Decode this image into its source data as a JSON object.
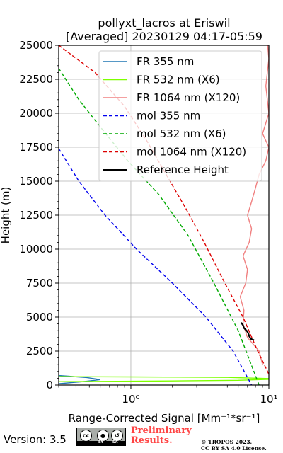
{
  "chart_data": {
    "type": "line",
    "title_line1": "pollyxt_lacros at Eriswil",
    "title_line2": "[Averaged] 20230129 04:17-05:59",
    "xlabel": "Range-Corrected Signal [Mm⁻¹*sr⁻¹]",
    "ylabel": "Height (m)",
    "xscale": "log",
    "xlim": [
      0.3,
      10
    ],
    "ylim": [
      0,
      25000
    ],
    "grid": true,
    "legend_position": "top-right",
    "yticks": [
      "0",
      "2500",
      "5000",
      "7500",
      "10000",
      "12500",
      "15000",
      "17500",
      "20000",
      "22500",
      "25000"
    ],
    "xticks": [
      "10⁰",
      "10¹"
    ],
    "series": [
      {
        "name": "FR 355 nm",
        "color": "#1f77b4",
        "style": "solid",
        "x": [
          0.3,
          0.45,
          0.6,
          0.48,
          0.35,
          0.3
        ],
        "y": [
          100,
          250,
          400,
          550,
          650,
          700
        ]
      },
      {
        "name": "FR 532 nm (X6)",
        "color": "#7fff00",
        "style": "solid",
        "x": [
          0.3,
          2.0,
          6.0,
          10.0,
          10.0,
          5.0,
          1.0,
          0.3
        ],
        "y": [
          250,
          300,
          350,
          420,
          480,
          560,
          600,
          620
        ]
      },
      {
        "name": "FR 1064 nm (X120)",
        "color": "#f08080",
        "style": "solid",
        "x": [
          9.0,
          8.5,
          7.0,
          6.5,
          6.6,
          6.2,
          6.8,
          7.0,
          6.5,
          7.2,
          7.5,
          7.0,
          7.5,
          8.0,
          8.5,
          9.5,
          10.0,
          9.0,
          10.0,
          9.5,
          10.0,
          9.8
        ],
        "y": [
          1500,
          2500,
          3500,
          4500,
          5500,
          6500,
          7500,
          8500,
          9500,
          10500,
          11500,
          12500,
          13500,
          14500,
          15500,
          16500,
          17500,
          18500,
          20000,
          22000,
          24000,
          25000
        ]
      },
      {
        "name": "mol 355 nm",
        "color": "#0000ee",
        "style": "dashed",
        "x": [
          0.3,
          0.42,
          0.65,
          1.1,
          2.0,
          3.5,
          5.5,
          7.5
        ],
        "y": [
          17400,
          15000,
          12500,
          10000,
          7500,
          5000,
          2500,
          0
        ]
      },
      {
        "name": "mol 532 nm (X6)",
        "color": "#00aa00",
        "style": "dashed",
        "x": [
          0.3,
          0.42,
          0.6,
          0.95,
          1.6,
          2.6,
          4.0,
          6.0,
          8.5
        ],
        "y": [
          23300,
          21000,
          19000,
          16500,
          14000,
          11000,
          7500,
          4000,
          0
        ]
      },
      {
        "name": "mol 1064 nm (X120)",
        "color": "#dd0000",
        "style": "dashed",
        "x": [
          0.3,
          0.55,
          0.9,
          1.3,
          1.8,
          2.5,
          3.4,
          4.8,
          6.5,
          8.3,
          10.0
        ],
        "y": [
          25000,
          23000,
          20500,
          18000,
          15500,
          13000,
          10500,
          7500,
          5000,
          2500,
          800
        ]
      },
      {
        "name": "Reference Height",
        "color": "#000000",
        "style": "solid",
        "x": [
          6.3,
          6.5,
          6.6,
          6.9,
          7.1,
          7.2,
          7.4,
          7.8
        ],
        "y": [
          4600,
          4400,
          4200,
          4000,
          3800,
          3600,
          3400,
          3300
        ]
      }
    ]
  },
  "footer": {
    "version": "Version: 3.5",
    "cc_by": "BY",
    "cc_sa": "SA",
    "preliminary_line1": "Preliminary",
    "preliminary_line2": "Results.",
    "copyright_line1": "© TROPOS 2023.",
    "copyright_line2": "CC BY SA 4.0 License."
  }
}
